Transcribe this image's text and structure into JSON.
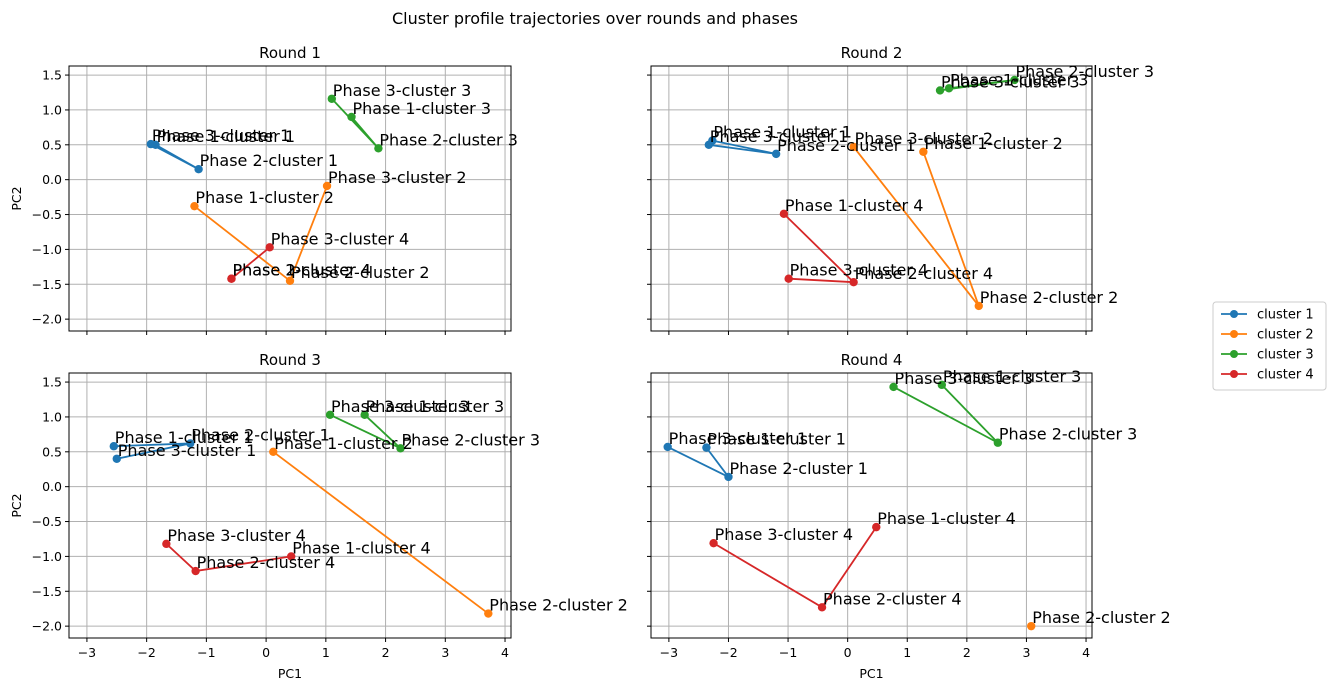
{
  "chart_data": {
    "type": "line",
    "title": "Cluster profile trajectories over rounds and phases",
    "xlabel": "PC1",
    "ylabel": "PC2",
    "xlim": [
      -3.3,
      4.1
    ],
    "ylim": [
      -2.17,
      1.63
    ],
    "xticks": [
      -3,
      -2,
      -1,
      0,
      1,
      2,
      3,
      4
    ],
    "yticks": [
      -2.0,
      -1.5,
      -1.0,
      -0.5,
      0.0,
      0.5,
      1.0,
      1.5
    ],
    "grid": true,
    "legend_position": "right",
    "legend": [
      "cluster 1",
      "cluster 2",
      "cluster 3",
      "cluster 4"
    ],
    "series_colors": [
      "#1f77b4",
      "#ff7f0e",
      "#2ca02c",
      "#d62728"
    ],
    "panels": [
      {
        "title": "Round 1",
        "series": [
          {
            "name": "cluster 1",
            "points": [
              {
                "x": -1.85,
                "y": 0.5,
                "label": "Phase 1-cluster 1"
              },
              {
                "x": -1.13,
                "y": 0.15,
                "label": "Phase 2-cluster 1"
              },
              {
                "x": -1.93,
                "y": 0.51,
                "label": "Phase 3-cluster 1"
              }
            ]
          },
          {
            "name": "cluster 2",
            "points": [
              {
                "x": -1.2,
                "y": -0.38,
                "label": "Phase 1-cluster 2"
              },
              {
                "x": 0.4,
                "y": -1.45,
                "label": "Phase 2-cluster 2"
              },
              {
                "x": 1.02,
                "y": -0.09,
                "label": "Phase 3-cluster 2"
              }
            ]
          },
          {
            "name": "cluster 3",
            "points": [
              {
                "x": 1.43,
                "y": 0.9,
                "label": "Phase 1-cluster 3"
              },
              {
                "x": 1.88,
                "y": 0.45,
                "label": "Phase 2-cluster 3"
              },
              {
                "x": 1.1,
                "y": 1.16,
                "label": "Phase 3-cluster 3"
              }
            ]
          },
          {
            "name": "cluster 4",
            "points": [
              {
                "x": -0.58,
                "y": -1.42,
                "label": "Phase 1-cluster 4"
              },
              {
                "x": -0.58,
                "y": -1.42,
                "label": "Phase 2-cluster 4"
              },
              {
                "x": 0.06,
                "y": -0.97,
                "label": "Phase 3-cluster 4"
              }
            ]
          }
        ]
      },
      {
        "title": "Round 2",
        "series": [
          {
            "name": "cluster 1",
            "points": [
              {
                "x": -2.27,
                "y": 0.56,
                "label": "Phase 1-cluster 1"
              },
              {
                "x": -1.2,
                "y": 0.37,
                "label": "Phase 2-cluster 1"
              },
              {
                "x": -2.33,
                "y": 0.5,
                "label": "Phase 3-cluster 1"
              }
            ]
          },
          {
            "name": "cluster 2",
            "points": [
              {
                "x": 1.27,
                "y": 0.4,
                "label": "Phase 1-cluster 2"
              },
              {
                "x": 2.2,
                "y": -1.81,
                "label": "Phase 2-cluster 2"
              },
              {
                "x": 0.1,
                "y": 0.47,
                "label": "Phase 3-cluster 2"
              }
            ]
          },
          {
            "name": "cluster 3",
            "points": [
              {
                "x": 1.7,
                "y": 1.31,
                "label": "Phase 1-cluster 3"
              },
              {
                "x": 2.8,
                "y": 1.43,
                "label": "Phase 2-cluster 3"
              },
              {
                "x": 1.55,
                "y": 1.28,
                "label": "Phase 3-cluster 3"
              }
            ]
          },
          {
            "name": "cluster 4",
            "points": [
              {
                "x": -1.07,
                "y": -0.49,
                "label": "Phase 1-cluster 4"
              },
              {
                "x": 0.1,
                "y": -1.47,
                "label": "Phase 2-cluster 4"
              },
              {
                "x": -0.99,
                "y": -1.42,
                "label": "Phase 3-cluster 4"
              }
            ]
          }
        ]
      },
      {
        "title": "Round 3",
        "series": [
          {
            "name": "cluster 1",
            "points": [
              {
                "x": -2.55,
                "y": 0.58,
                "label": "Phase 1-cluster 1"
              },
              {
                "x": -1.27,
                "y": 0.62,
                "label": "Phase 2-cluster 1"
              },
              {
                "x": -2.5,
                "y": 0.4,
                "label": "Phase 3-cluster 1"
              }
            ]
          },
          {
            "name": "cluster 2",
            "points": [
              {
                "x": 0.12,
                "y": 0.5,
                "label": "Phase 1-cluster 2"
              },
              {
                "x": 3.72,
                "y": -1.82,
                "label": "Phase 2-cluster 2"
              }
            ]
          },
          {
            "name": "cluster 3",
            "points": [
              {
                "x": 1.65,
                "y": 1.03,
                "label": "Phase 1-cluster 3"
              },
              {
                "x": 2.25,
                "y": 0.55,
                "label": "Phase 2-cluster 3"
              },
              {
                "x": 1.07,
                "y": 1.03,
                "label": "Phase 3-cluster 3"
              }
            ]
          },
          {
            "name": "cluster 4",
            "points": [
              {
                "x": 0.42,
                "y": -1.0,
                "label": "Phase 1-cluster 4"
              },
              {
                "x": -1.18,
                "y": -1.21,
                "label": "Phase 2-cluster 4"
              },
              {
                "x": -1.67,
                "y": -0.82,
                "label": "Phase 3-cluster 4"
              }
            ]
          }
        ]
      },
      {
        "title": "Round 4",
        "series": [
          {
            "name": "cluster 1",
            "points": [
              {
                "x": -2.37,
                "y": 0.56,
                "label": "Phase 1-cluster 1"
              },
              {
                "x": -2.0,
                "y": 0.14,
                "label": "Phase 2-cluster 1"
              },
              {
                "x": -3.02,
                "y": 0.57,
                "label": "Phase 3-cluster 1"
              }
            ]
          },
          {
            "name": "cluster 2",
            "points": [
              {
                "x": 3.08,
                "y": -2.0,
                "label": "Phase 2-cluster 2"
              }
            ]
          },
          {
            "name": "cluster 3",
            "points": [
              {
                "x": 1.58,
                "y": 1.46,
                "label": "Phase 1-cluster 3"
              },
              {
                "x": 2.52,
                "y": 0.63,
                "label": "Phase 2-cluster 3"
              },
              {
                "x": 0.77,
                "y": 1.43,
                "label": "Phase 3-cluster 3"
              }
            ]
          },
          {
            "name": "cluster 4",
            "points": [
              {
                "x": 0.48,
                "y": -0.58,
                "label": "Phase 1-cluster 4"
              },
              {
                "x": -0.43,
                "y": -1.73,
                "label": "Phase 2-cluster 4"
              },
              {
                "x": -2.25,
                "y": -0.81,
                "label": "Phase 3-cluster 4"
              }
            ]
          }
        ]
      }
    ]
  }
}
